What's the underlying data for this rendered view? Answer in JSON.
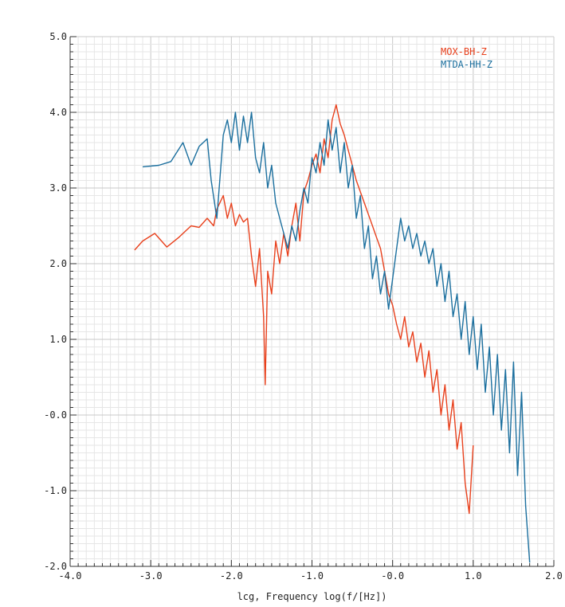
{
  "chart_data": {
    "type": "line",
    "title": "",
    "xlabel": "lcg, Frequency log(f/[Hz])",
    "ylabel": "",
    "xlim": [
      -4.0,
      2.0
    ],
    "ylim": [
      -2.0,
      5.0
    ],
    "grid": "on (major and minor)",
    "legend_position": "top-right",
    "x_ticks": [
      {
        "value": -4.0,
        "label": "-4.0"
      },
      {
        "value": -3.0,
        "label": "-3.0"
      },
      {
        "value": -2.0,
        "label": "-2.0"
      },
      {
        "value": -1.0,
        "label": "-1.0"
      },
      {
        "value": 0.0,
        "label": "-0.0"
      },
      {
        "value": 1.0,
        "label": "1.0"
      },
      {
        "value": 2.0,
        "label": "2.0"
      }
    ],
    "y_ticks": [
      {
        "value": -2.0,
        "label": "-2.0"
      },
      {
        "value": -1.0,
        "label": "-1.0"
      },
      {
        "value": 0.0,
        "label": "-0.0"
      },
      {
        "value": 1.0,
        "label": "1.0"
      },
      {
        "value": 2.0,
        "label": "2.0"
      },
      {
        "value": 3.0,
        "label": "3.0"
      },
      {
        "value": 4.0,
        "label": "4.0"
      },
      {
        "value": 5.0,
        "label": "5.0"
      }
    ],
    "series": [
      {
        "name": "MOX-BH-Z",
        "color": "#e8401c",
        "x": [
          -3.2,
          -3.1,
          -2.95,
          -2.8,
          -2.65,
          -2.5,
          -2.4,
          -2.3,
          -2.22,
          -2.18,
          -2.1,
          -2.05,
          -2.0,
          -1.95,
          -1.9,
          -1.85,
          -1.8,
          -1.75,
          -1.7,
          -1.65,
          -1.6,
          -1.58,
          -1.55,
          -1.5,
          -1.45,
          -1.4,
          -1.35,
          -1.3,
          -1.25,
          -1.2,
          -1.15,
          -1.1,
          -1.05,
          -1.0,
          -0.95,
          -0.9,
          -0.85,
          -0.8,
          -0.75,
          -0.7,
          -0.65,
          -0.6,
          -0.55,
          -0.5,
          -0.45,
          -0.4,
          -0.35,
          -0.3,
          -0.25,
          -0.2,
          -0.15,
          -0.1,
          -0.05,
          0.0,
          0.05,
          0.1,
          0.15,
          0.2,
          0.25,
          0.3,
          0.35,
          0.4,
          0.45,
          0.5,
          0.55,
          0.6,
          0.65,
          0.7,
          0.75,
          0.8,
          0.85,
          0.9,
          0.95,
          1.0
        ],
        "y": [
          2.18,
          2.3,
          2.4,
          2.22,
          2.35,
          2.5,
          2.48,
          2.6,
          2.5,
          2.72,
          2.9,
          2.6,
          2.8,
          2.5,
          2.65,
          2.55,
          2.6,
          2.1,
          1.7,
          2.2,
          1.3,
          0.4,
          1.9,
          1.6,
          2.3,
          2.0,
          2.4,
          2.1,
          2.5,
          2.8,
          2.3,
          2.95,
          3.1,
          3.3,
          3.45,
          3.2,
          3.65,
          3.4,
          3.9,
          4.1,
          3.85,
          3.7,
          3.5,
          3.3,
          3.1,
          2.95,
          2.8,
          2.65,
          2.5,
          2.35,
          2.2,
          1.9,
          1.6,
          1.45,
          1.2,
          1.0,
          1.3,
          0.9,
          1.1,
          0.7,
          0.95,
          0.5,
          0.85,
          0.3,
          0.6,
          0.0,
          0.4,
          -0.2,
          0.2,
          -0.45,
          -0.1,
          -0.9,
          -1.3,
          -0.4
        ]
      },
      {
        "name": "MTDA-HH-Z",
        "color": "#1b6f9e",
        "x": [
          -3.1,
          -2.9,
          -2.75,
          -2.6,
          -2.5,
          -2.4,
          -2.3,
          -2.25,
          -2.18,
          -2.1,
          -2.05,
          -2.0,
          -1.95,
          -1.9,
          -1.85,
          -1.8,
          -1.75,
          -1.7,
          -1.65,
          -1.6,
          -1.55,
          -1.5,
          -1.45,
          -1.4,
          -1.35,
          -1.3,
          -1.25,
          -1.2,
          -1.15,
          -1.1,
          -1.05,
          -1.0,
          -0.95,
          -0.9,
          -0.85,
          -0.8,
          -0.75,
          -0.7,
          -0.65,
          -0.6,
          -0.55,
          -0.5,
          -0.45,
          -0.4,
          -0.35,
          -0.3,
          -0.25,
          -0.2,
          -0.15,
          -0.1,
          -0.05,
          0.0,
          0.05,
          0.1,
          0.15,
          0.2,
          0.25,
          0.3,
          0.35,
          0.4,
          0.45,
          0.5,
          0.55,
          0.6,
          0.65,
          0.7,
          0.75,
          0.8,
          0.85,
          0.9,
          0.95,
          1.0,
          1.05,
          1.1,
          1.15,
          1.2,
          1.25,
          1.3,
          1.35,
          1.4,
          1.45,
          1.5,
          1.55,
          1.6,
          1.65,
          1.7
        ],
        "y": [
          3.28,
          3.3,
          3.35,
          3.6,
          3.3,
          3.55,
          3.65,
          3.1,
          2.6,
          3.7,
          3.9,
          3.6,
          4.0,
          3.5,
          3.95,
          3.6,
          4.0,
          3.4,
          3.2,
          3.6,
          3.0,
          3.3,
          2.8,
          2.6,
          2.4,
          2.2,
          2.5,
          2.3,
          2.7,
          3.0,
          2.8,
          3.4,
          3.2,
          3.6,
          3.3,
          3.9,
          3.5,
          3.8,
          3.2,
          3.6,
          3.0,
          3.3,
          2.6,
          2.9,
          2.2,
          2.5,
          1.8,
          2.1,
          1.6,
          1.9,
          1.4,
          1.8,
          2.2,
          2.6,
          2.3,
          2.5,
          2.2,
          2.4,
          2.1,
          2.3,
          2.0,
          2.2,
          1.7,
          2.0,
          1.5,
          1.9,
          1.3,
          1.6,
          1.0,
          1.5,
          0.8,
          1.3,
          0.6,
          1.2,
          0.3,
          0.9,
          0.0,
          0.8,
          -0.2,
          0.6,
          -0.5,
          0.7,
          -0.8,
          0.3,
          -1.2,
          -1.95
        ]
      }
    ]
  }
}
